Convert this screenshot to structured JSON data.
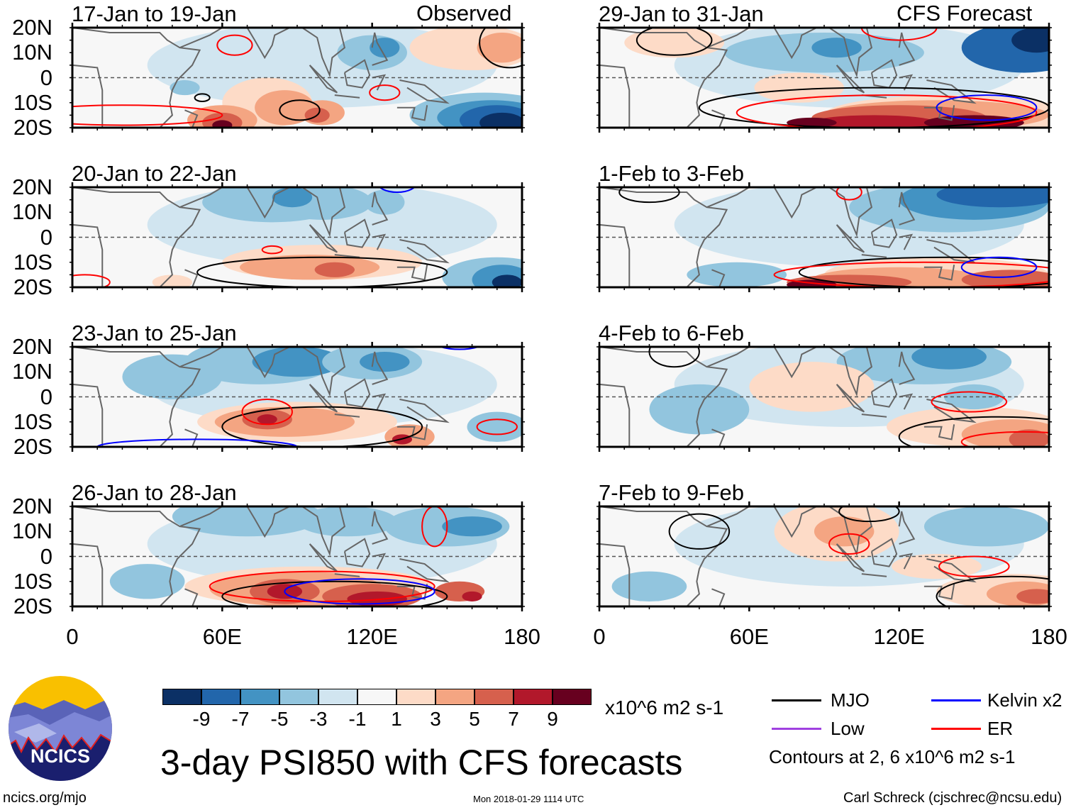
{
  "figure": {
    "title": "3-day PSI850 with CFS forecasts",
    "observed_label": "Observed",
    "forecast_label": "CFS Forecast",
    "url": "ncics.org/mjo",
    "timestamp": "Mon 2018-01-29 1114 UTC",
    "author": "Carl Schreck (cjschrec@ncsu.edu)",
    "logo_text": "NCICS"
  },
  "axes": {
    "lat_labels": [
      "20N",
      "10N",
      "0",
      "10S",
      "20S"
    ],
    "lon_labels": [
      "0",
      "60E",
      "120E",
      "180"
    ]
  },
  "panels": [
    {
      "period": "17-Jan to 19-Jan",
      "type": "observed"
    },
    {
      "period": "20-Jan to 22-Jan",
      "type": "observed"
    },
    {
      "period": "23-Jan to 25-Jan",
      "type": "observed"
    },
    {
      "period": "26-Jan to 28-Jan",
      "type": "observed"
    },
    {
      "period": "29-Jan to 31-Jan",
      "type": "forecast"
    },
    {
      "period": "1-Feb to 3-Feb",
      "type": "forecast"
    },
    {
      "period": "4-Feb to 6-Feb",
      "type": "forecast"
    },
    {
      "period": "7-Feb to 9-Feb",
      "type": "forecast"
    }
  ],
  "colorbar": {
    "units": "x10^6 m2 s-1",
    "labels": [
      "-9",
      "-7",
      "-5",
      "-3",
      "-1",
      "1",
      "3",
      "5",
      "7",
      "9"
    ],
    "colors": [
      "#0b3065",
      "#2266ab",
      "#4393c3",
      "#92c5de",
      "#d1e5f0",
      "#f7f7f7",
      "#fddbc7",
      "#f4a582",
      "#d6604d",
      "#b2182b",
      "#67001f"
    ]
  },
  "legend": {
    "items": [
      {
        "label": "MJO",
        "color": "#000000"
      },
      {
        "label": "Kelvin x2",
        "color": "#0000ff"
      },
      {
        "label": "Low",
        "color": "#a040e0"
      },
      {
        "label": "ER",
        "color": "#ff0000"
      }
    ],
    "note": "Contours at 2, 6 x10^6 m2 s-1"
  }
}
